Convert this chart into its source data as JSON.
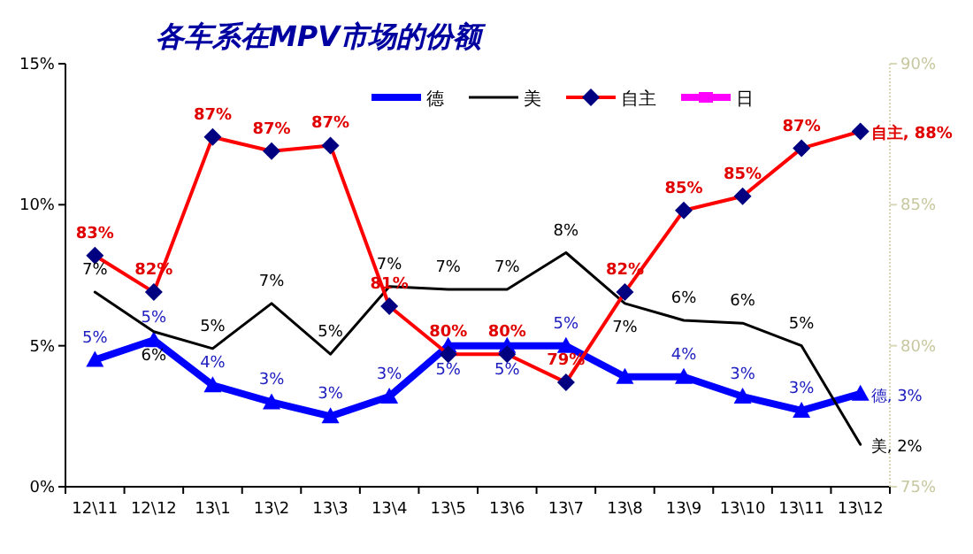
{
  "chart_data": {
    "type": "line",
    "title": "各车系在MPV市场的份额",
    "categories": [
      "12\\11",
      "12\\12",
      "13\\1",
      "13\\2",
      "13\\3",
      "13\\4",
      "13\\5",
      "13\\6",
      "13\\7",
      "13\\8",
      "13\\9",
      "13\\10",
      "13\\11",
      "13\\12"
    ],
    "series": [
      {
        "name": "德",
        "color": "#0000ff",
        "marker": "triangle",
        "values": [
          4.5,
          5.2,
          3.6,
          3.0,
          2.5,
          3.2,
          5.0,
          5.0,
          5.0,
          3.9,
          3.9,
          3.2,
          2.7,
          3.3
        ],
        "value_labels": [
          "5%",
          "5%",
          "4%",
          "3%",
          "3%",
          "3%",
          "5%",
          "5%",
          "5%",
          null,
          "4%",
          "3%",
          "3%",
          "德, 3%"
        ]
      },
      {
        "name": "美",
        "color": "#000000",
        "marker": "none",
        "values": [
          6.9,
          5.5,
          4.9,
          6.5,
          4.7,
          7.1,
          7.0,
          7.0,
          8.3,
          6.5,
          5.9,
          5.8,
          5.0,
          1.5
        ],
        "value_labels": [
          "7%",
          "6%",
          "5%",
          "7%",
          "5%",
          "7%",
          "7%",
          "7%",
          "8%",
          "7%",
          "6%",
          "6%",
          "5%",
          "美, 2%"
        ]
      },
      {
        "name": "自主",
        "color": "#ff0000",
        "marker": "diamond",
        "axis": "y2",
        "values": [
          83.2,
          81.9,
          87.4,
          86.9,
          87.1,
          81.4,
          79.7,
          79.7,
          78.7,
          81.9,
          84.8,
          85.3,
          87.0,
          87.6
        ],
        "value_labels": [
          "83%",
          "82%",
          "87%",
          "87%",
          "87%",
          "81%",
          "80%",
          "80%",
          "79%",
          "82%",
          "85%",
          "85%",
          "87%",
          "自主, 88%"
        ]
      },
      {
        "name": "日",
        "color": "#ff00ff",
        "marker": "square",
        "values": [
          null,
          null,
          null,
          null,
          null,
          null,
          null,
          null,
          null,
          null,
          null,
          null,
          null,
          null
        ]
      }
    ],
    "ylim": [
      0,
      15
    ],
    "yticks": [
      {
        "value": 0,
        "label": "0%"
      },
      {
        "value": 5,
        "label": "5%"
      },
      {
        "value": 10,
        "label": "10%"
      },
      {
        "value": 15,
        "label": "15%"
      }
    ],
    "y2lim": [
      75,
      90
    ],
    "y2ticks": [
      {
        "value": 75,
        "label": "75%"
      },
      {
        "value": 80,
        "label": "80%"
      },
      {
        "value": 85,
        "label": "85%"
      },
      {
        "value": 90,
        "label": "90%"
      }
    ],
    "grid": false,
    "legend": "top"
  }
}
